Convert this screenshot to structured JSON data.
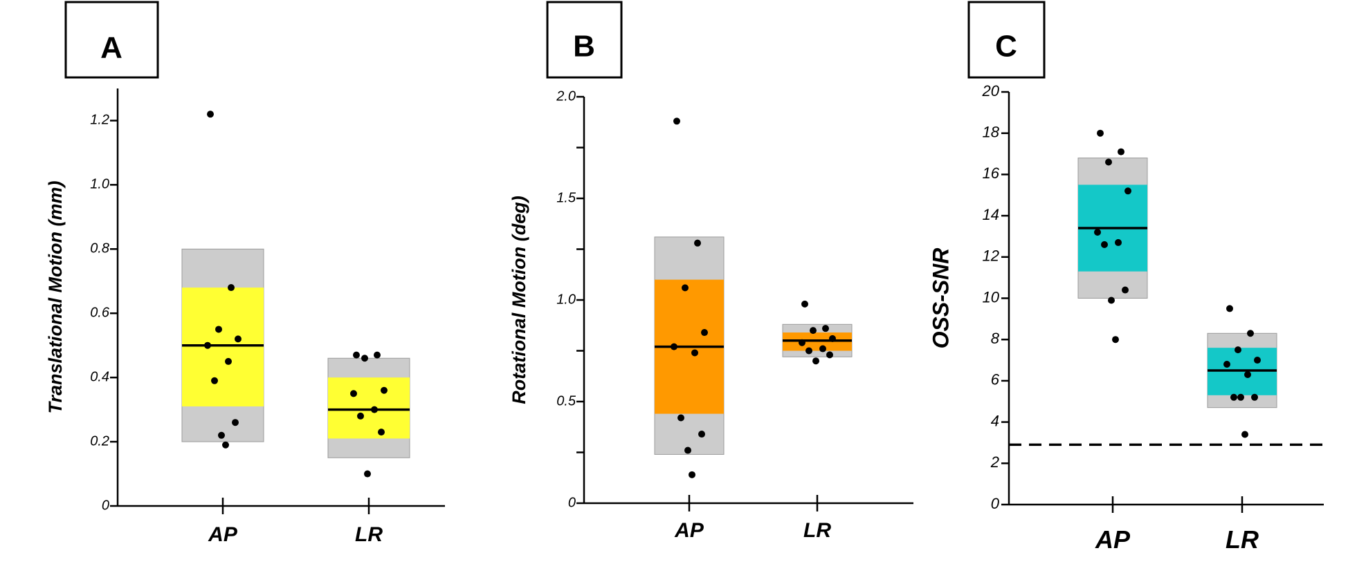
{
  "chart_data": [
    {
      "type": "boxplot",
      "panel": "A",
      "ylabel": "Translational Motion (mm)",
      "ylim": [
        0,
        1.3
      ],
      "yticks": [
        0,
        0.2,
        0.4,
        0.6,
        0.8,
        1.0,
        1.2
      ],
      "ytick_labels": [
        "0",
        "0.2",
        "0.4",
        "0.6",
        "0.8",
        "1.0",
        "1.2"
      ],
      "categories": [
        "AP",
        "LR"
      ],
      "fill_color": "#ffff33",
      "boxes": [
        {
          "category": "AP",
          "outer": [
            0.2,
            0.8
          ],
          "inner": [
            0.31,
            0.68
          ],
          "median": 0.5,
          "points": [
            1.22,
            0.68,
            0.55,
            0.52,
            0.5,
            0.45,
            0.39,
            0.26,
            0.22,
            0.19
          ]
        },
        {
          "category": "LR",
          "outer": [
            0.15,
            0.46
          ],
          "inner": [
            0.21,
            0.4
          ],
          "median": 0.3,
          "points": [
            0.47,
            0.47,
            0.46,
            0.36,
            0.35,
            0.3,
            0.28,
            0.23,
            0.1
          ]
        }
      ]
    },
    {
      "type": "boxplot",
      "panel": "B",
      "ylabel": "Rotational Motion (deg)",
      "ylim": [
        0,
        2.0
      ],
      "yticks": [
        0,
        0.25,
        0.5,
        0.75,
        1.0,
        1.25,
        1.5,
        1.75,
        2.0
      ],
      "ytick_labels": [
        "0",
        "",
        "0.5",
        "",
        "1.0",
        "",
        "1.5",
        "",
        "2.0"
      ],
      "categories": [
        "AP",
        "LR"
      ],
      "fill_color": "#ff9900",
      "boxes": [
        {
          "category": "AP",
          "outer": [
            0.24,
            1.31
          ],
          "inner": [
            0.44,
            1.1
          ],
          "median": 0.77,
          "points": [
            1.88,
            1.28,
            1.06,
            0.84,
            0.77,
            0.74,
            0.42,
            0.34,
            0.26,
            0.14
          ]
        },
        {
          "category": "LR",
          "outer": [
            0.72,
            0.88
          ],
          "inner": [
            0.75,
            0.84
          ],
          "median": 0.8,
          "points": [
            0.98,
            0.86,
            0.85,
            0.81,
            0.79,
            0.76,
            0.75,
            0.73,
            0.7
          ]
        }
      ]
    },
    {
      "type": "boxplot",
      "panel": "C",
      "ylabel": "OSS-SNR",
      "ylim": [
        0,
        20
      ],
      "yticks": [
        0,
        2,
        4,
        6,
        8,
        10,
        12,
        14,
        16,
        18,
        20
      ],
      "ytick_labels": [
        "0",
        "2",
        "4",
        "6",
        "8",
        "10",
        "12",
        "14",
        "16",
        "18",
        "20"
      ],
      "categories": [
        "AP",
        "LR"
      ],
      "fill_color": "#14c8c8",
      "reference_line": 2.9,
      "boxes": [
        {
          "category": "AP",
          "outer": [
            10.0,
            16.8
          ],
          "inner": [
            11.3,
            15.5
          ],
          "median": 13.4,
          "points": [
            18.0,
            17.1,
            16.6,
            15.2,
            13.2,
            12.7,
            12.6,
            10.4,
            9.9,
            8.0
          ]
        },
        {
          "category": "LR",
          "outer": [
            4.7,
            8.3
          ],
          "inner": [
            5.3,
            7.6
          ],
          "median": 6.5,
          "points": [
            9.5,
            8.3,
            7.5,
            7.0,
            6.8,
            6.3,
            5.2,
            5.2,
            5.2,
            3.4
          ]
        }
      ]
    }
  ],
  "colors": {
    "box_outer": "#cccccc",
    "axis": "#000000",
    "point": "#000000"
  }
}
